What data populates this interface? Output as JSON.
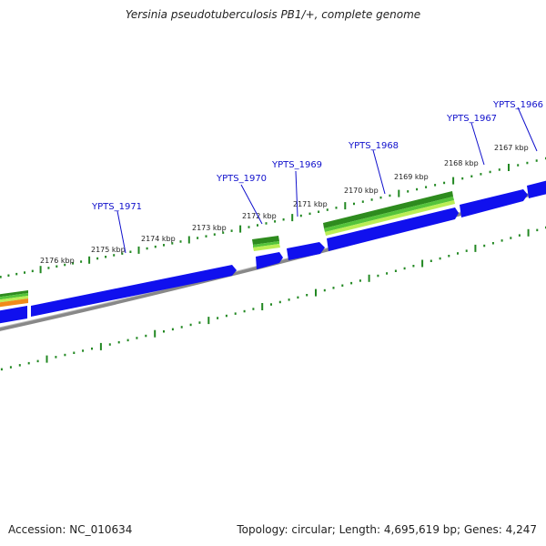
{
  "title": "Yersinia pseudotuberculosis PB1/+, complete genome",
  "footer": {
    "accession": "Accession: NC_010634",
    "summary": "Topology: circular; Length: 4,695,619 bp; Genes: 4,247"
  },
  "colors": {
    "gene": "#1010ee",
    "backbone": "#888888",
    "ticks": "#228822",
    "gene_label": "#1010cc",
    "track_dark_green": "#2e8b1e",
    "track_green": "#55c43a",
    "track_light_green": "#bbee55",
    "track_orange": "#f08a1a"
  },
  "ruler": {
    "unit": "kbp",
    "labels": [
      {
        "kbp": 2176,
        "text": "2176 kbp"
      },
      {
        "kbp": 2175,
        "text": "2175 kbp"
      },
      {
        "kbp": 2174,
        "text": "2174 kbp"
      },
      {
        "kbp": 2173,
        "text": "2173 kbp"
      },
      {
        "kbp": 2172,
        "text": "2172 kbp"
      },
      {
        "kbp": 2171,
        "text": "2171 kbp"
      },
      {
        "kbp": 2170,
        "text": "2170 kbp"
      },
      {
        "kbp": 2169,
        "text": "2169 kbp"
      },
      {
        "kbp": 2168,
        "text": "2168 kbp"
      },
      {
        "kbp": 2167,
        "text": "2167 kbp"
      }
    ]
  },
  "genes": [
    {
      "label": "YPTS_1971"
    },
    {
      "label": "YPTS_1970"
    },
    {
      "label": "YPTS_1969"
    },
    {
      "label": "YPTS_1968"
    },
    {
      "label": "YPTS_1967"
    },
    {
      "label": "YPTS_1966"
    }
  ]
}
